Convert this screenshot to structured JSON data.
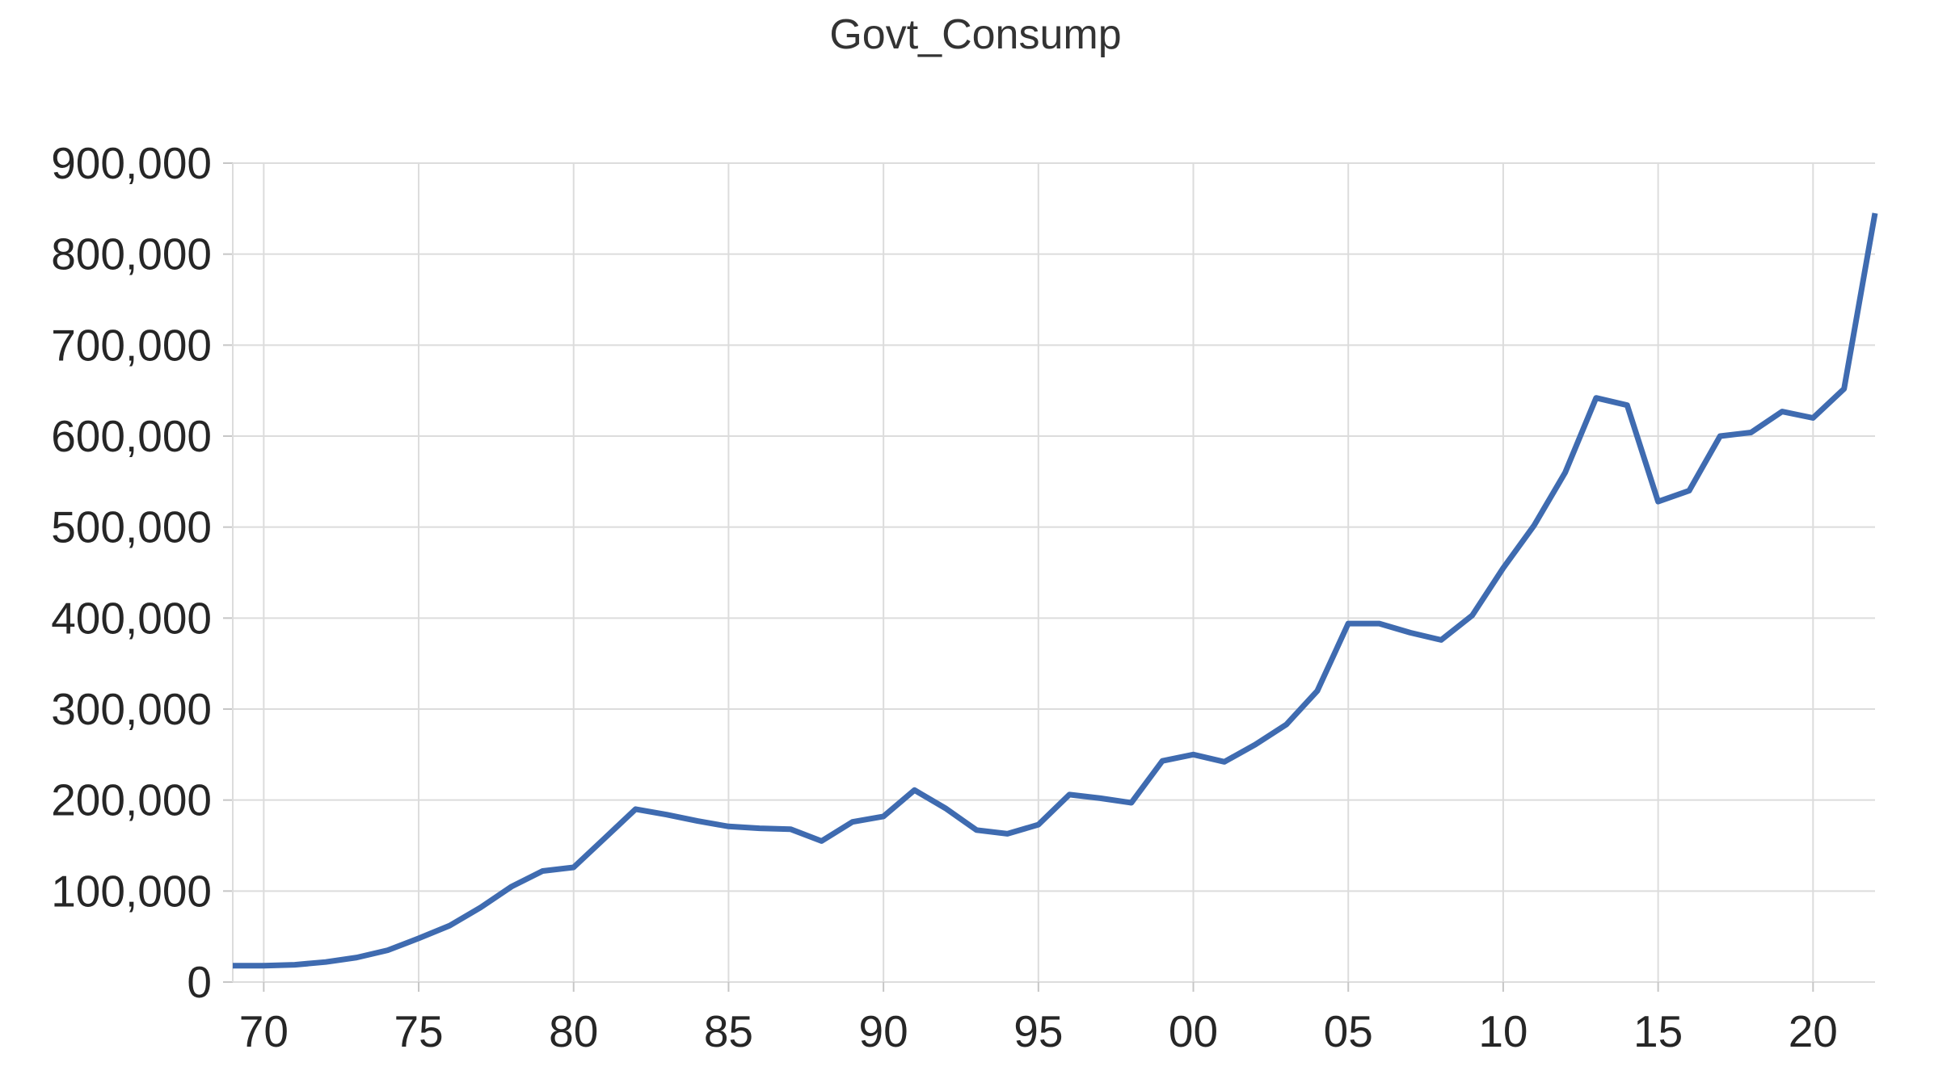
{
  "page": {
    "background": "#FFFFFF"
  },
  "chart_data": {
    "type": "line",
    "title": "Govt_Consump",
    "legend": "none",
    "grid": true,
    "xlim": [
      1969,
      2022
    ],
    "ylim": [
      0,
      900000
    ],
    "x": [
      1969,
      1970,
      1971,
      1972,
      1973,
      1974,
      1975,
      1976,
      1977,
      1978,
      1979,
      1980,
      1981,
      1982,
      1983,
      1984,
      1985,
      1986,
      1987,
      1988,
      1989,
      1990,
      1991,
      1992,
      1993,
      1994,
      1995,
      1996,
      1997,
      1998,
      1999,
      2000,
      2001,
      2002,
      2003,
      2004,
      2005,
      2006,
      2007,
      2008,
      2009,
      2010,
      2011,
      2012,
      2013,
      2014,
      2015,
      2016,
      2017,
      2018,
      2019,
      2020,
      2021,
      2022
    ],
    "series": [
      {
        "name": "Govt_Consump",
        "values": [
          18000,
          18000,
          19000,
          22000,
          27000,
          35000,
          48000,
          62000,
          82000,
          105000,
          122000,
          126000,
          158000,
          190000,
          184000,
          177000,
          171000,
          169000,
          168000,
          155000,
          176000,
          182000,
          211000,
          191000,
          167000,
          163000,
          173000,
          206000,
          202000,
          197000,
          243000,
          250000,
          242000,
          261000,
          283000,
          320000,
          394000,
          394000,
          384000,
          376000,
          403000,
          455000,
          502000,
          560000,
          642000,
          634000,
          528000,
          540000,
          600000,
          604000,
          627000,
          620000,
          652000,
          845000
        ]
      }
    ],
    "x_tick_years": [
      1970,
      1975,
      1980,
      1985,
      1990,
      1995,
      2000,
      2005,
      2010,
      2015,
      2020
    ],
    "x_tick_labels": [
      "70",
      "75",
      "80",
      "85",
      "90",
      "95",
      "00",
      "05",
      "10",
      "15",
      "20"
    ],
    "y_ticks": [
      0,
      100000,
      200000,
      300000,
      400000,
      500000,
      600000,
      700000,
      800000,
      900000
    ],
    "y_tick_labels": [
      "0",
      "100,000",
      "200,000",
      "300,000",
      "400,000",
      "500,000",
      "600,000",
      "700,000",
      "800,000",
      "900,000"
    ],
    "line_color": "#3F6BB0",
    "grid_color": "#DCDCDC",
    "tick_color": "#C6C6C6",
    "text_color": "#262626",
    "title_color": "#333333"
  }
}
